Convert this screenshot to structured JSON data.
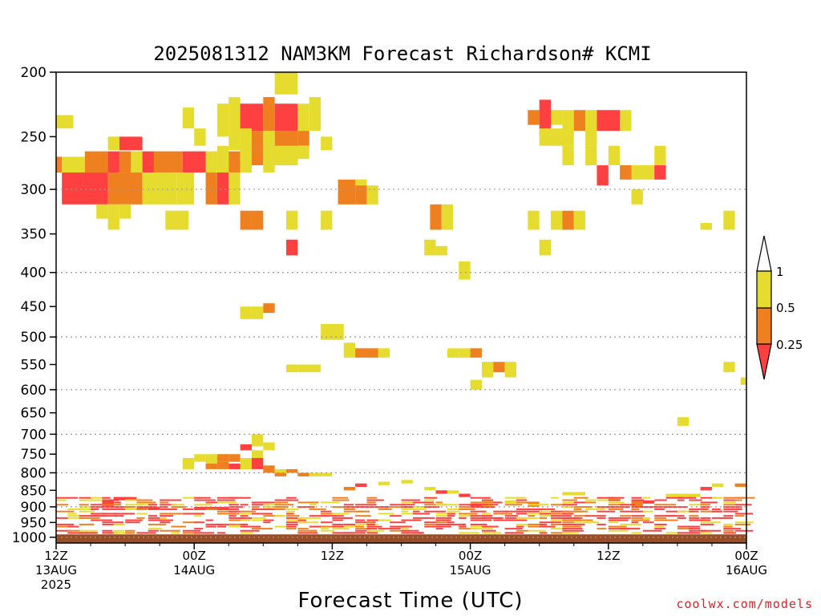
{
  "chart_data": {
    "type": "heatmap",
    "title": "2025081312 NAM3KM Forecast Richardson# KCMI",
    "xlabel": "Forecast Time (UTC)",
    "ylabel": "",
    "y_scale": "log",
    "y_reversed": true,
    "ylim": [
      1020,
      200
    ],
    "xlim_hours": [
      0,
      60
    ],
    "y_ticks": [
      200,
      250,
      300,
      350,
      400,
      450,
      500,
      550,
      600,
      650,
      700,
      750,
      800,
      850,
      900,
      950,
      1000
    ],
    "y_gridlines": [
      300,
      400,
      500,
      600,
      700,
      800,
      900,
      1000
    ],
    "x_ticks": [
      {
        "hour": 0,
        "line1": "12Z",
        "line2": "13AUG",
        "line3": "2025"
      },
      {
        "hour": 12,
        "line1": "00Z",
        "line2": "14AUG",
        "line3": ""
      },
      {
        "hour": 24,
        "line1": "12Z",
        "line2": "",
        "line3": ""
      },
      {
        "hour": 36,
        "line1": "00Z",
        "line2": "15AUG",
        "line3": ""
      },
      {
        "hour": 48,
        "line1": "12Z",
        "line2": "",
        "line3": ""
      },
      {
        "hour": 60,
        "line1": "00Z",
        "line2": "16AUG",
        "line3": ""
      }
    ],
    "colorbar": {
      "levels": [
        0.25,
        0.5,
        1
      ],
      "labels": [
        "0.25",
        "0.5",
        "1"
      ],
      "colors": {
        "below_0.25": "#ff4040",
        "0.25-0.5": "#ee8020",
        "0.5-1": "#e6dc30",
        "above_1": "#ffffff"
      }
    },
    "ground": {
      "color": "#9a4e28",
      "top_hPa": 990
    },
    "cells_note": "each cell: [forecast hour start, hour end, pressure top hPa, pressure bottom hPa, category 1=<0.25 2=0.25-0.5 3=0.5-1]",
    "cells": [
      [
        0,
        1.5,
        232,
        243,
        3
      ],
      [
        0,
        0.5,
        268,
        283,
        2
      ],
      [
        0.5,
        2.5,
        268,
        283,
        3
      ],
      [
        2.5,
        4.5,
        263,
        283,
        2
      ],
      [
        4.5,
        5.5,
        263,
        283,
        1
      ],
      [
        5.5,
        6.5,
        263,
        283,
        2
      ],
      [
        6.5,
        7.5,
        263,
        283,
        3
      ],
      [
        7.5,
        8.5,
        263,
        283,
        1
      ],
      [
        8.5,
        11,
        263,
        283,
        2
      ],
      [
        11,
        13,
        263,
        283,
        1
      ],
      [
        13,
        14,
        263,
        283,
        3
      ],
      [
        14,
        15,
        258,
        283,
        3
      ],
      [
        15,
        16,
        263,
        283,
        2
      ],
      [
        16,
        17,
        258,
        283,
        3
      ],
      [
        0.5,
        4.5,
        283,
        316,
        1
      ],
      [
        4.5,
        7.5,
        283,
        316,
        2
      ],
      [
        7.5,
        10.5,
        283,
        316,
        3
      ],
      [
        10.5,
        12,
        283,
        316,
        3
      ],
      [
        13,
        14,
        283,
        316,
        2
      ],
      [
        14,
        15,
        283,
        316,
        1
      ],
      [
        15,
        16,
        283,
        316,
        3
      ],
      [
        3.5,
        4.5,
        316,
        332,
        3
      ],
      [
        4.5,
        5.5,
        316,
        345,
        3
      ],
      [
        5.5,
        6.5,
        316,
        332,
        3
      ],
      [
        9.5,
        11.5,
        323,
        345,
        3
      ],
      [
        4.5,
        5.5,
        250,
        262,
        3
      ],
      [
        5.5,
        7.5,
        250,
        262,
        1
      ],
      [
        11,
        12,
        226,
        243,
        3
      ],
      [
        12,
        13,
        243,
        258,
        3
      ],
      [
        14,
        15,
        223,
        250,
        3
      ],
      [
        15,
        16,
        218,
        262,
        3
      ],
      [
        16,
        18,
        223,
        245,
        1
      ],
      [
        18,
        19,
        218,
        245,
        2
      ],
      [
        19,
        21,
        223,
        245,
        1
      ],
      [
        21,
        22,
        223,
        245,
        3
      ],
      [
        19,
        21,
        245,
        276,
        2
      ],
      [
        21,
        22,
        245,
        258,
        2
      ],
      [
        16,
        17,
        243,
        266,
        3
      ],
      [
        17,
        18,
        245,
        276,
        2
      ],
      [
        18,
        19,
        245,
        283,
        3
      ],
      [
        19,
        21,
        258,
        276,
        3
      ],
      [
        21,
        22,
        258,
        270,
        3
      ],
      [
        22,
        23,
        218,
        245,
        3
      ],
      [
        19,
        20,
        200,
        216,
        3
      ],
      [
        20,
        21,
        200,
        216,
        3
      ],
      [
        23,
        24,
        250,
        262,
        3
      ],
      [
        16,
        17,
        323,
        345,
        2
      ],
      [
        17,
        18,
        323,
        345,
        2
      ],
      [
        20,
        21,
        323,
        345,
        3
      ],
      [
        20,
        21,
        357,
        377,
        1
      ],
      [
        23,
        24,
        323,
        345,
        3
      ],
      [
        24.5,
        26,
        290,
        316,
        2
      ],
      [
        26,
        27,
        290,
        316,
        2
      ],
      [
        27,
        28,
        296,
        316,
        3
      ],
      [
        26,
        27,
        290,
        296,
        3
      ],
      [
        32,
        33,
        357,
        377,
        3
      ],
      [
        33,
        34,
        365,
        377,
        3
      ],
      [
        32.5,
        33.5,
        316,
        345,
        2
      ],
      [
        33.5,
        34.5,
        316,
        345,
        3
      ],
      [
        35,
        36,
        385,
        410,
        3
      ],
      [
        16,
        17,
        450,
        470,
        3
      ],
      [
        17,
        18,
        450,
        470,
        3
      ],
      [
        18,
        19,
        445,
        460,
        2
      ],
      [
        23,
        25,
        478,
        505,
        3
      ],
      [
        25,
        26,
        510,
        537,
        3
      ],
      [
        26,
        28,
        520,
        537,
        2
      ],
      [
        28,
        29,
        520,
        537,
        3
      ],
      [
        20,
        21,
        550,
        565,
        3
      ],
      [
        21,
        23,
        550,
        565,
        3
      ],
      [
        34,
        35,
        520,
        537,
        3
      ],
      [
        35,
        36,
        520,
        537,
        3
      ],
      [
        36,
        37,
        520,
        537,
        2
      ],
      [
        37,
        38,
        545,
        575,
        3
      ],
      [
        38,
        39,
        545,
        565,
        2
      ],
      [
        39,
        40,
        545,
        575,
        3
      ],
      [
        36,
        37,
        580,
        600,
        3
      ],
      [
        41,
        42,
        228,
        240,
        2
      ],
      [
        42,
        43,
        220,
        250,
        1
      ],
      [
        43,
        44,
        228,
        240,
        3
      ],
      [
        42,
        45,
        243,
        258,
        3
      ],
      [
        44,
        45,
        228,
        245,
        3
      ],
      [
        45,
        46,
        228,
        245,
        2
      ],
      [
        46,
        47,
        228,
        258,
        3
      ],
      [
        47,
        49,
        228,
        245,
        1
      ],
      [
        49,
        50,
        228,
        245,
        3
      ],
      [
        44,
        45,
        258,
        276,
        3
      ],
      [
        46,
        47,
        258,
        276,
        3
      ],
      [
        47,
        48,
        276,
        296,
        1
      ],
      [
        49,
        50,
        276,
        290,
        2
      ],
      [
        50,
        52,
        276,
        290,
        3
      ],
      [
        48,
        49,
        258,
        276,
        3
      ],
      [
        52,
        53,
        258,
        276,
        3
      ],
      [
        52,
        53,
        276,
        290,
        1
      ],
      [
        50,
        51,
        300,
        316,
        3
      ],
      [
        41,
        42,
        323,
        345,
        3
      ],
      [
        43,
        44,
        323,
        345,
        3
      ],
      [
        44,
        45,
        323,
        345,
        2
      ],
      [
        45,
        46,
        323,
        345,
        3
      ],
      [
        42,
        43,
        357,
        377,
        3
      ],
      [
        54,
        55,
        660,
        680,
        3
      ],
      [
        56,
        57,
        337,
        345,
        3
      ],
      [
        58,
        59,
        323,
        345,
        3
      ],
      [
        58,
        59,
        545,
        565,
        3
      ],
      [
        59.5,
        60,
        575,
        590,
        3
      ],
      [
        11,
        12,
        760,
        790,
        3
      ],
      [
        12,
        13,
        750,
        770,
        3
      ],
      [
        13,
        14,
        750,
        775,
        3
      ],
      [
        13,
        14,
        775,
        790,
        2
      ],
      [
        14,
        15,
        750,
        770,
        2
      ],
      [
        14,
        15,
        770,
        790,
        2
      ],
      [
        15,
        16,
        750,
        770,
        2
      ],
      [
        15,
        16,
        775,
        790,
        1
      ],
      [
        16,
        17,
        780,
        790,
        2
      ],
      [
        17,
        18,
        700,
        730,
        3
      ],
      [
        16,
        17,
        725,
        740,
        1
      ],
      [
        18,
        19,
        720,
        740,
        3
      ],
      [
        17,
        18,
        740,
        760,
        3
      ],
      [
        16,
        17,
        760,
        790,
        3
      ],
      [
        17,
        18,
        760,
        790,
        1
      ],
      [
        18,
        19,
        780,
        800,
        2
      ],
      [
        19,
        20,
        790,
        800,
        3
      ],
      [
        19,
        20,
        800,
        810,
        2
      ],
      [
        20,
        21,
        790,
        800,
        2
      ],
      [
        21,
        22,
        800,
        810,
        2
      ],
      [
        22,
        23,
        800,
        810,
        3
      ],
      [
        23,
        24,
        800,
        810,
        3
      ],
      [
        25,
        26,
        840,
        850,
        2
      ],
      [
        26,
        27,
        830,
        840,
        1
      ],
      [
        28,
        29,
        825,
        835,
        3
      ],
      [
        30,
        31,
        820,
        830,
        3
      ],
      [
        32,
        33,
        840,
        850,
        3
      ],
      [
        33,
        34,
        850,
        860,
        1
      ],
      [
        34,
        35,
        850,
        860,
        3
      ],
      [
        35,
        36,
        860,
        870,
        1
      ],
      [
        36,
        37,
        890,
        900,
        1
      ],
      [
        37,
        38,
        880,
        900,
        3
      ],
      [
        39,
        40,
        880,
        890,
        3
      ],
      [
        41,
        42,
        885,
        900,
        2
      ],
      [
        44,
        46,
        855,
        865,
        3
      ],
      [
        48,
        49,
        870,
        880,
        3
      ],
      [
        50,
        51,
        880,
        900,
        2
      ],
      [
        51,
        52,
        880,
        890,
        1
      ],
      [
        53,
        56,
        860,
        870,
        3
      ],
      [
        56,
        57,
        840,
        850,
        1
      ],
      [
        57,
        58,
        830,
        840,
        3
      ],
      [
        59,
        60,
        830,
        840,
        2
      ],
      [
        12,
        15,
        900,
        910,
        1
      ],
      [
        7,
        9,
        900,
        910,
        1
      ],
      [
        4,
        5,
        880,
        900,
        1
      ],
      [
        5,
        6,
        870,
        880,
        1
      ],
      [
        6,
        7,
        870,
        880,
        1
      ]
    ],
    "low_level_note": "dense mixed bands near 850-1000 hPa",
    "low_band": [
      [
        850,
        990
      ]
    ]
  },
  "credit": "coolwx.com/models"
}
